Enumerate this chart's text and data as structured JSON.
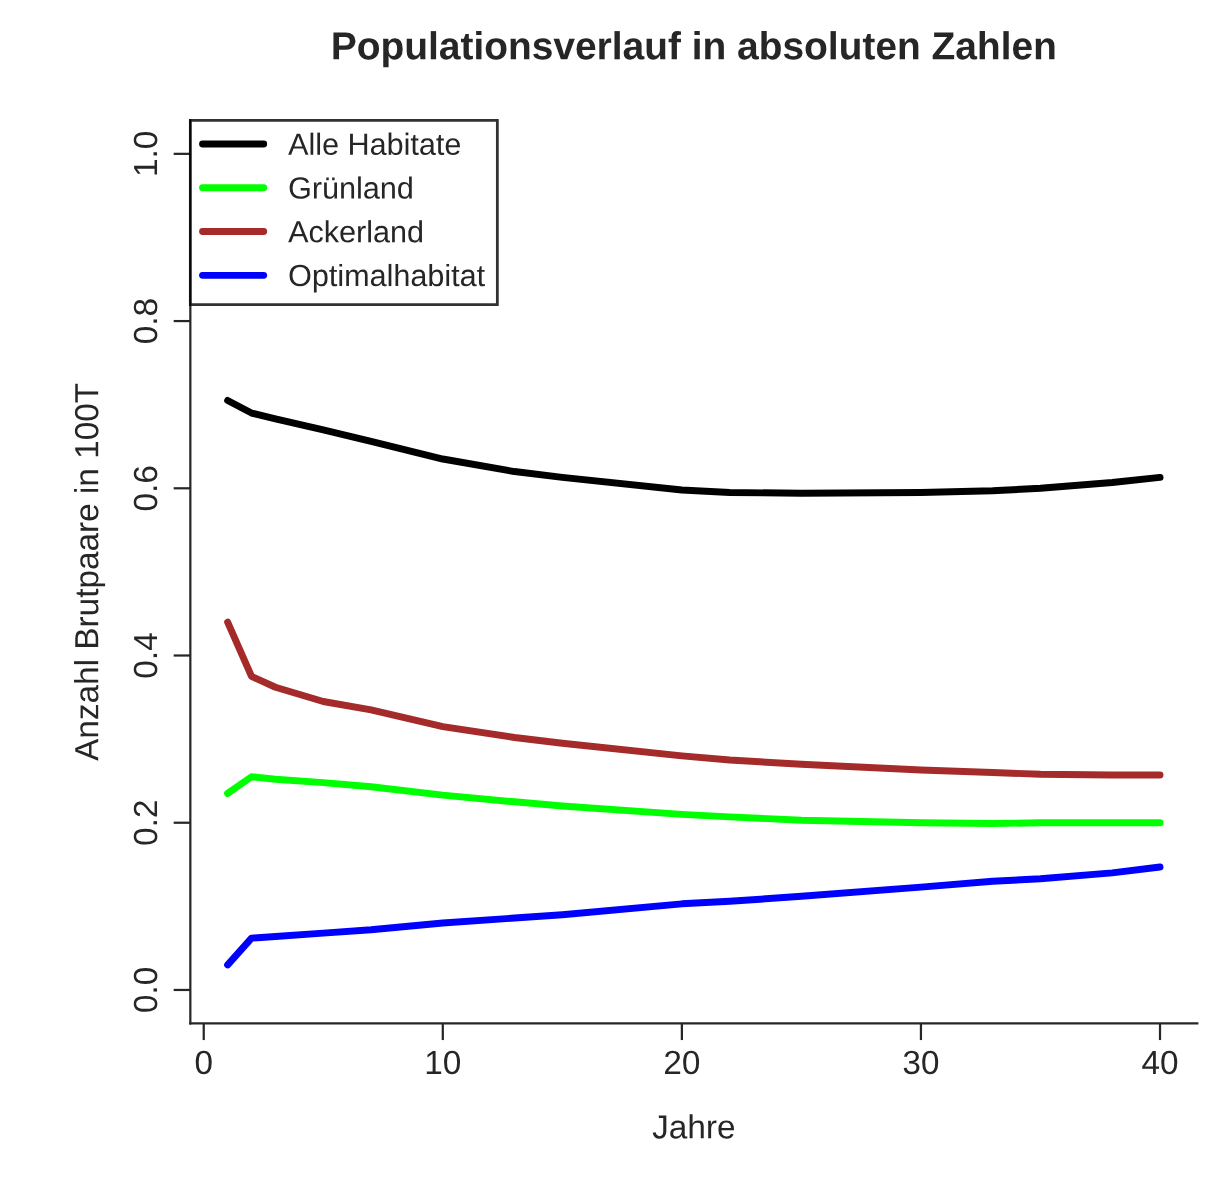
{
  "chart_data": {
    "type": "line",
    "title": "Populationsverlauf in absoluten Zahlen",
    "xlabel": "Jahre",
    "ylabel": "Anzahl Brutpaare in 100T",
    "xlim": [
      -0.56,
      41.56
    ],
    "xticks": [
      0,
      10,
      20,
      30,
      40
    ],
    "ylim": [
      -0.04,
      1.04
    ],
    "yticks": [
      {
        "value": 0,
        "label": "0.0"
      },
      0.2,
      0.4,
      0.6,
      0.8,
      {
        "value": 1,
        "label": "1.0"
      }
    ],
    "grid": false,
    "legend": "top left",
    "marker": "none",
    "line_style": "solid",
    "x": [
      1,
      2,
      3,
      5,
      7,
      10,
      13,
      15,
      20,
      22,
      25,
      30,
      33,
      35,
      38,
      40
    ],
    "series": [
      {
        "name": "Alle Habitate",
        "color": "#000000",
        "values": [
          0.705,
          0.69,
          0.683,
          0.67,
          0.656,
          0.635,
          0.62,
          0.613,
          0.598,
          0.595,
          0.594,
          0.595,
          0.597,
          0.6,
          0.607,
          0.613
        ]
      },
      {
        "name": "Grünland",
        "color": "#00ff00",
        "values": [
          0.235,
          0.255,
          0.252,
          0.248,
          0.243,
          0.233,
          0.225,
          0.22,
          0.21,
          0.207,
          0.203,
          0.2,
          0.199,
          0.2,
          0.2,
          0.2
        ]
      },
      {
        "name": "Ackerland",
        "color": "#a52a2a",
        "values": [
          0.44,
          0.375,
          0.362,
          0.345,
          0.335,
          0.315,
          0.302,
          0.295,
          0.28,
          0.275,
          0.27,
          0.263,
          0.26,
          0.258,
          0.257,
          0.257
        ]
      },
      {
        "name": "Optimalhabitat",
        "color": "#0000ff",
        "values": [
          0.03,
          0.062,
          0.064,
          0.068,
          0.072,
          0.08,
          0.086,
          0.09,
          0.103,
          0.106,
          0.112,
          0.123,
          0.13,
          0.133,
          0.14,
          0.147
        ]
      }
    ]
  }
}
